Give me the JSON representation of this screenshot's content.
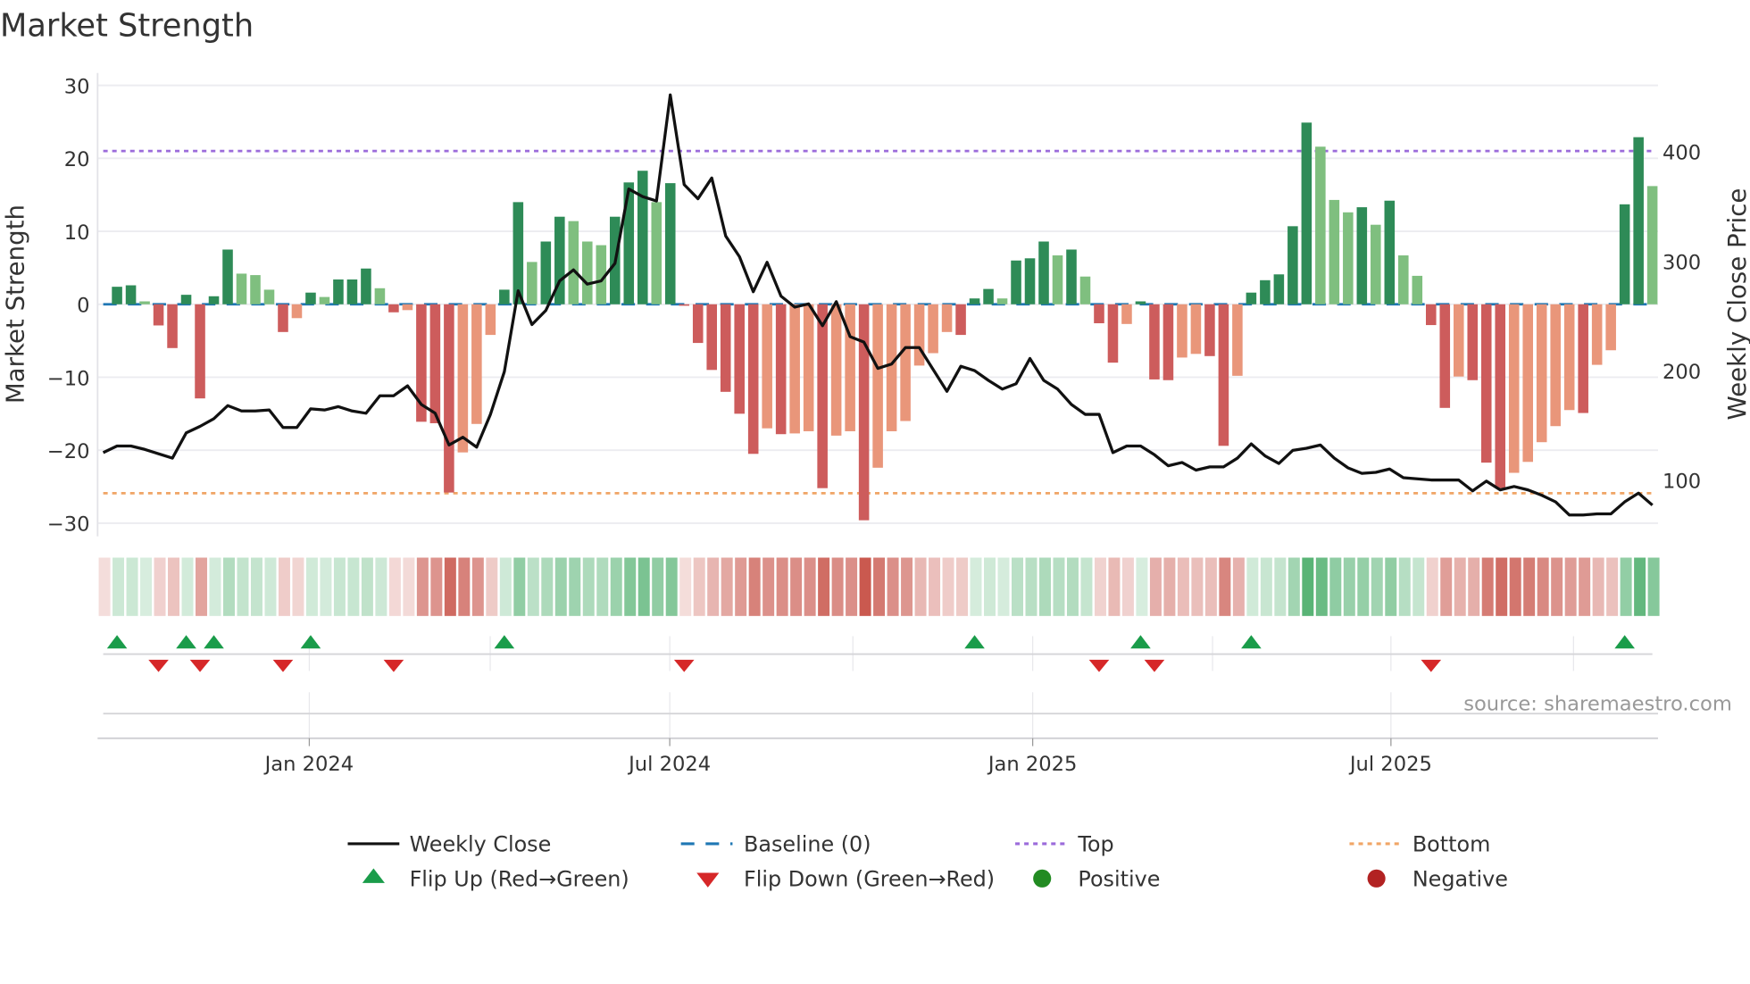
{
  "title": "Market Strength",
  "source": "source: sharemaestro.com",
  "legend": {
    "weekly_close": "Weekly Close",
    "baseline": "Baseline (0)",
    "top": "Top",
    "bottom": "Bottom",
    "flip_up": "Flip Up (Red→Green)",
    "flip_down": "Flip Down (Green→Red)",
    "positive": "Positive",
    "negative": "Negative"
  },
  "colors": {
    "pos_dark": "#2e8b57",
    "pos_light": "#7fbf7f",
    "neg_dark": "#cd5c5c",
    "neg_light": "#e9967a",
    "line": "#111111",
    "baseline": "#1f77b4",
    "top": "#9b6bdb",
    "bottom": "#f0a566",
    "flip_up": "#1a9c4a",
    "flip_down": "#d62728",
    "positive": "#228b22",
    "negative": "#b22222"
  },
  "chart_data": {
    "type": "bar+line",
    "title": "Market Strength",
    "ylabel": "Market Strength",
    "y2label": "Weekly Close Price",
    "ylim": [
      -31.8,
      31.7
    ],
    "y2lim": [
      48.5,
      472
    ],
    "yticks": [
      30,
      20,
      10,
      0,
      -10,
      -20,
      -30
    ],
    "ytick_labels": [
      "30",
      "20",
      "10",
      "0",
      "−10",
      "−20",
      "−30"
    ],
    "y2ticks": [
      400,
      300,
      200,
      100
    ],
    "y2tick_labels": [
      "400",
      "300",
      "200",
      "100"
    ],
    "top_level": 21,
    "bottom_level": -25.9,
    "baseline": 0,
    "x_unit": "week index (weekly, from late Sep 2023)",
    "xticks": [
      14.9,
      40.96,
      67.2,
      93.1
    ],
    "xtick_labels": [
      "Jan 2024",
      "Jul 2024",
      "Jan 2025",
      "Jul 2025"
    ],
    "quarter_gridlines": [
      14.9,
      27.98,
      40.96,
      54.2,
      67.2,
      80.2,
      93.1,
      106.3
    ],
    "strength": [
      0,
      2.4,
      2.6,
      0.4,
      -2.9,
      -6,
      1.3,
      -12.9,
      1.1,
      7.5,
      4.2,
      4.0,
      2.0,
      -3.8,
      -1.9,
      1.6,
      1.0,
      3.4,
      3.4,
      4.9,
      2.2,
      -1.1,
      -0.8,
      -16.1,
      -16.3,
      -25.8,
      -20.3,
      -16.4,
      -4.2,
      2.0,
      14,
      5.8,
      8.6,
      12,
      11.4,
      8.6,
      8.1,
      12,
      16.7,
      18.3,
      14,
      16.6,
      -0.2,
      -5.3,
      -9,
      -12,
      -15,
      -20.5,
      -17,
      -17.8,
      -17.7,
      -17.4,
      -25.2,
      -18,
      -17.4,
      -29.6,
      -22.4,
      -17.4,
      -16,
      -8.4,
      -6.7,
      -3.8,
      -4.2,
      0.8,
      2.1,
      0.8,
      6,
      6.3,
      8.6,
      6.7,
      7.5,
      3.8,
      -2.6,
      -8,
      -2.7,
      0.4,
      -10.3,
      -10.4,
      -7.3,
      -6.8,
      -7.1,
      -19.4,
      -9.8,
      1.6,
      3.3,
      4.1,
      10.7,
      24.9,
      21.6,
      14.3,
      12.6,
      13.3,
      10.9,
      14.2,
      6.7,
      3.9,
      -2.85,
      -14.2,
      -9.9,
      -10.4,
      -21.7,
      -25.2,
      -23.1,
      -21.6,
      -18.9,
      -16.7,
      -14.5,
      -14.9,
      -8.3,
      -6.3,
      13.7,
      22.9,
      16.2
    ],
    "shade": "dddlddddddllldldldddldldddllldd lddllldddldddddddldlldlldlllllldddldddldlddldddlld dldddddllldldllddldddllllldlldd l",
    "weekly_close": [
      125,
      131,
      131,
      128,
      124,
      120,
      143,
      149,
      156,
      168,
      163,
      163,
      164,
      148,
      148,
      165,
      164,
      167,
      163,
      161,
      177,
      177,
      186,
      169,
      161,
      132,
      139,
      130,
      160,
      199,
      273,
      242,
      255,
      282,
      292,
      279,
      282,
      298,
      366,
      359,
      355,
      452,
      370,
      357,
      376,
      323,
      304,
      272,
      299,
      268,
      258,
      261,
      241,
      263,
      231,
      226,
      202,
      206,
      221,
      221,
      201,
      181,
      204,
      200,
      191,
      183,
      188,
      211,
      191,
      183,
      169,
      160,
      160,
      125,
      131,
      131,
      123,
      113,
      116,
      109,
      112,
      112,
      120,
      133,
      122,
      115,
      127,
      129,
      132,
      120,
      111,
      106,
      107,
      110,
      102,
      101,
      100,
      100,
      100,
      90,
      99,
      91,
      94,
      91,
      86,
      80,
      68,
      68,
      69,
      69,
      80,
      88,
      77
    ],
    "flip_up_weeks": [
      1,
      6,
      8,
      15,
      29,
      63,
      75,
      83,
      110
    ],
    "flip_down_weeks": [
      4,
      7,
      13,
      21,
      42,
      72,
      76,
      96
    ],
    "legend_position": "bottom"
  }
}
